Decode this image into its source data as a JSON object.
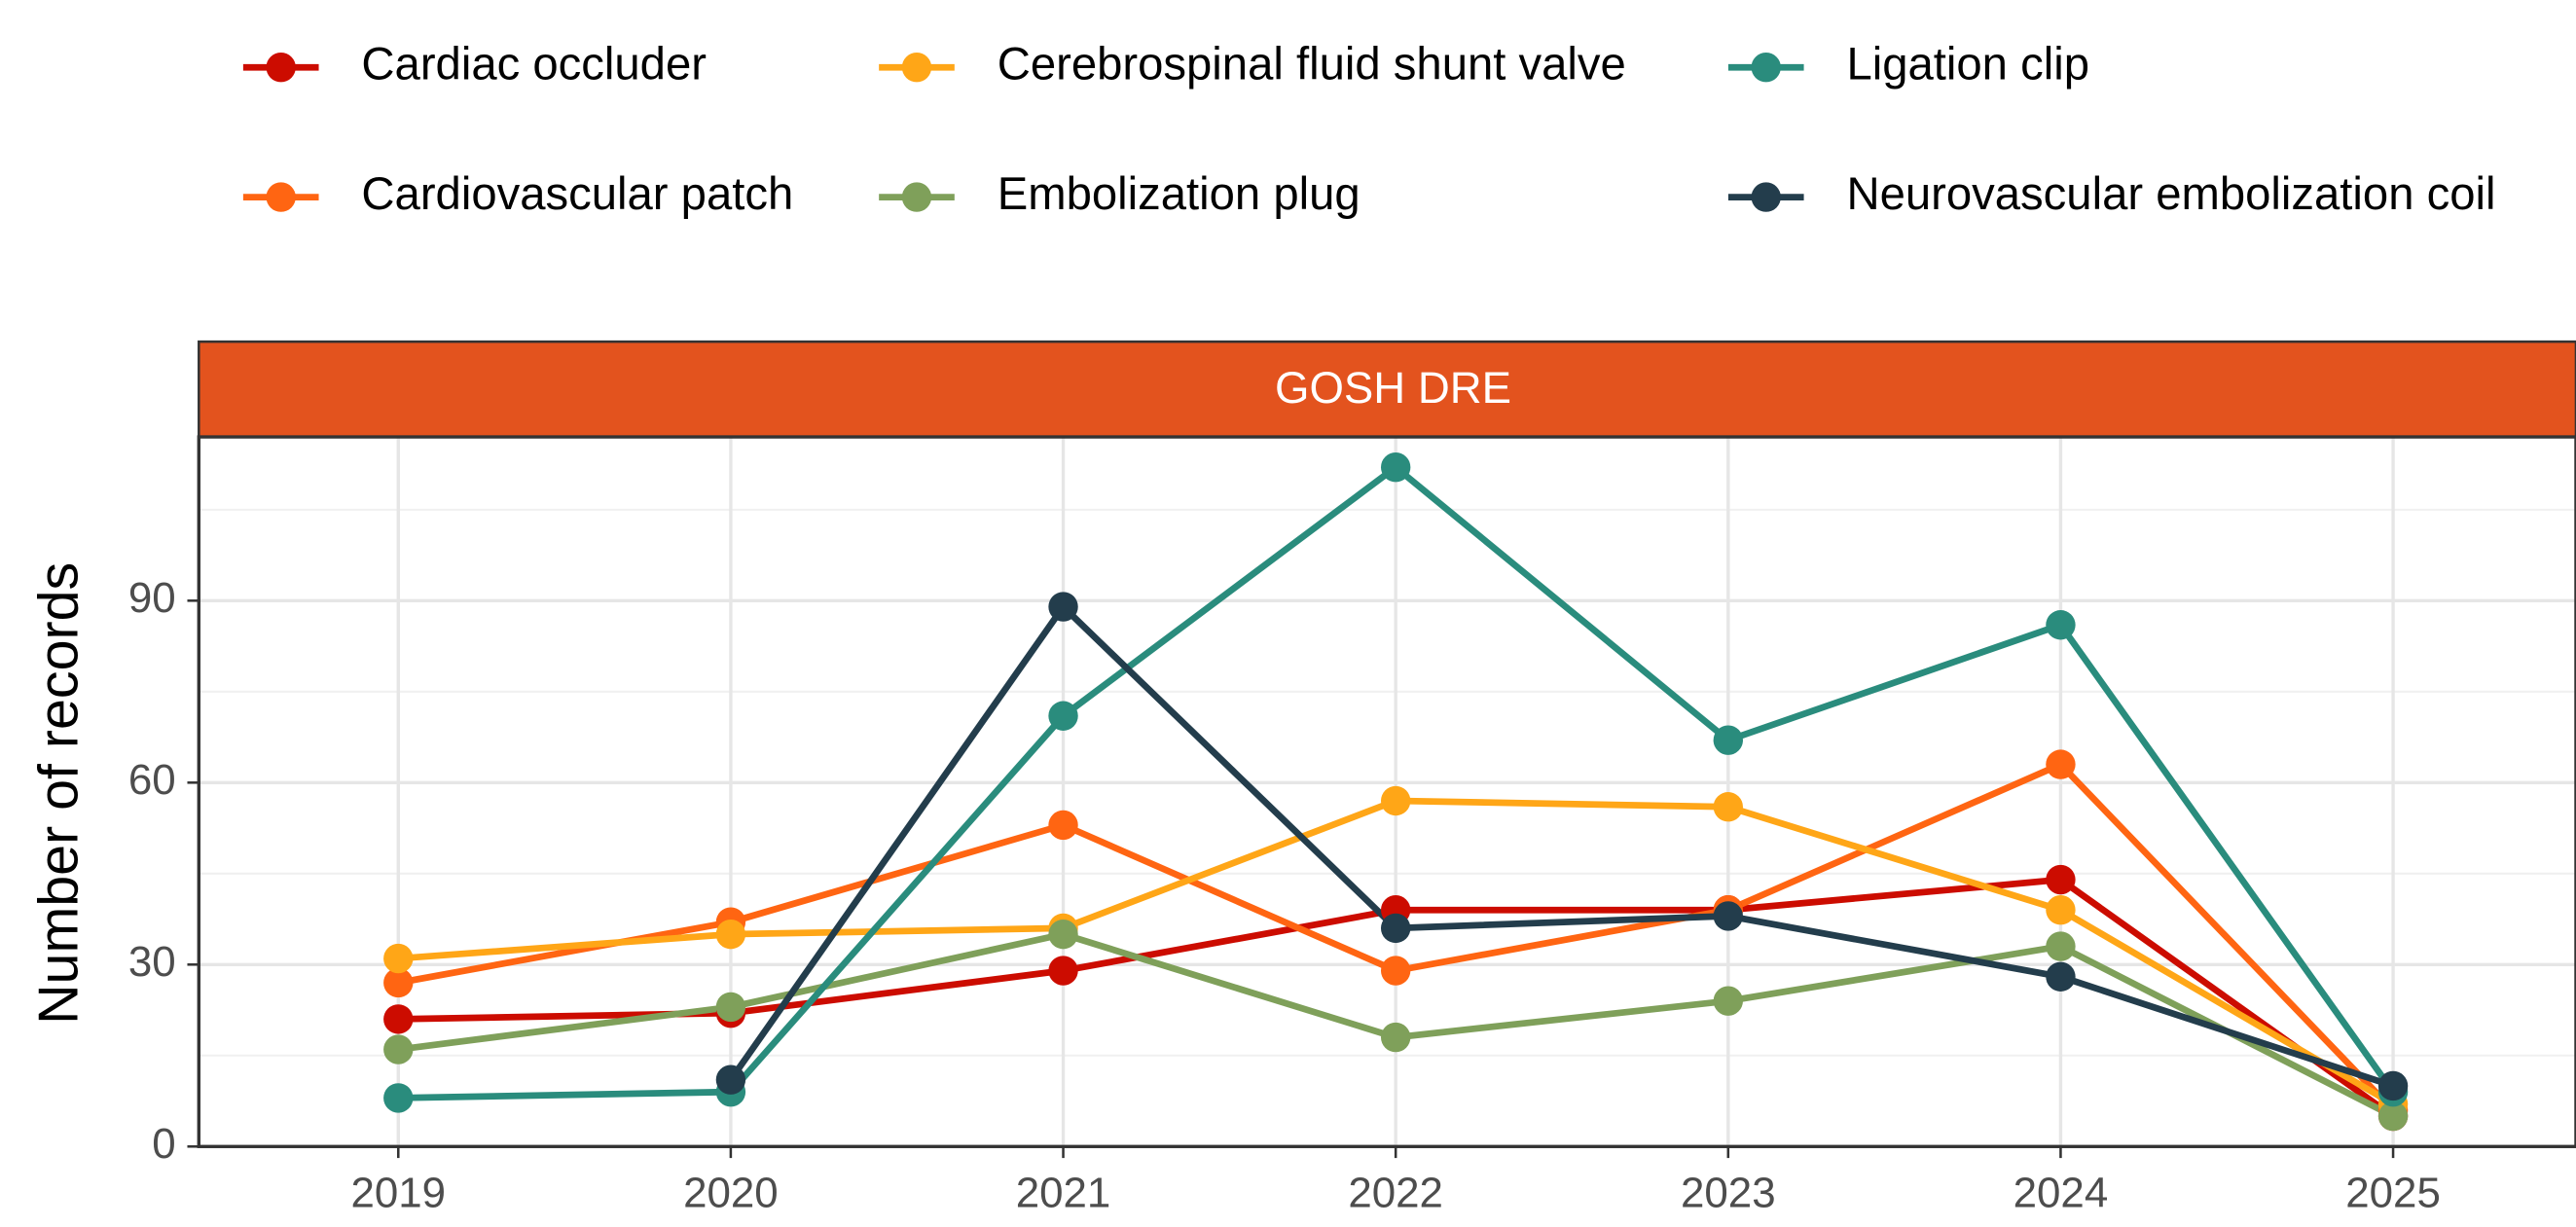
{
  "chart_data": {
    "type": "line",
    "facet_title": "GOSH DRE",
    "y_label": "Number of records",
    "x": [
      2019,
      2020,
      2021,
      2022,
      2023,
      2024,
      2025
    ],
    "xlim": [
      2018.4,
      2025.55
    ],
    "xticks": [
      2019,
      2020,
      2021,
      2022,
      2023,
      2024,
      2025
    ],
    "ylim": [
      0,
      117
    ],
    "yticks": [
      0,
      30,
      60,
      90
    ],
    "grid": true,
    "legend": "top",
    "series": [
      {
        "name": "Cardiac occluder",
        "color": "#CC0C00",
        "values": [
          21,
          22,
          29,
          39,
          39,
          44,
          5
        ]
      },
      {
        "name": "Cardiovascular patch",
        "color": "#FF6512",
        "values": [
          27,
          37,
          53,
          29,
          39,
          63,
          6
        ]
      },
      {
        "name": "Cerebrospinal fluid shunt valve",
        "color": "#FFA617",
        "values": [
          31,
          35,
          36,
          57,
          56,
          39,
          7
        ]
      },
      {
        "name": "Embolization plug",
        "color": "#7FA05A",
        "values": [
          16,
          23,
          35,
          18,
          24,
          33,
          5
        ]
      },
      {
        "name": "Ligation clip",
        "color": "#2A8C7D",
        "values": [
          8,
          9,
          71,
          112,
          67,
          86,
          9
        ]
      },
      {
        "name": "Neurovascular embolization coil",
        "color": "#233D4C",
        "values": [
          null,
          11,
          89,
          36,
          38,
          28,
          10
        ]
      }
    ]
  }
}
